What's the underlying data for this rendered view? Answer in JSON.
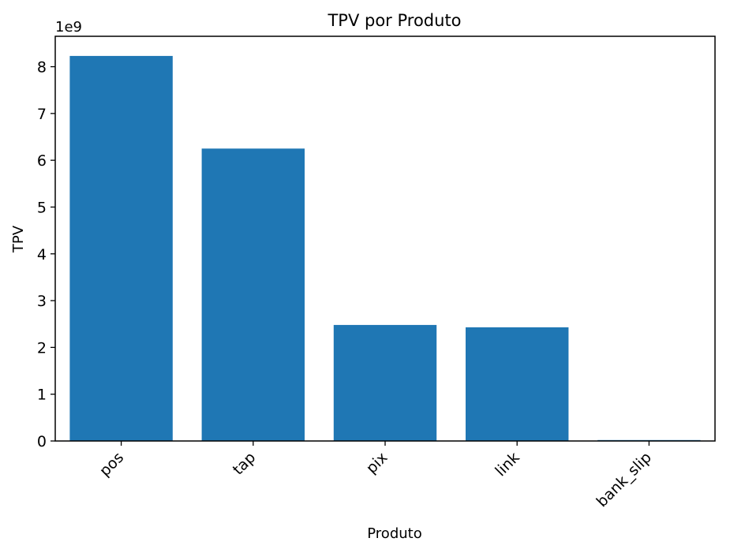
{
  "chart_data": {
    "type": "bar",
    "title": "TPV por Produto",
    "xlabel": "Produto",
    "ylabel": "TPV",
    "y_offset_label": "1e9",
    "y_scale": 1000000000,
    "categories": [
      "pos",
      "tap",
      "pix",
      "link",
      "bank_slip"
    ],
    "values": [
      8230000000,
      6250000000,
      2480000000,
      2430000000,
      20000000
    ],
    "ylim": [
      0,
      8.65
    ],
    "yticks": [
      0,
      1,
      2,
      3,
      4,
      5,
      6,
      7,
      8
    ],
    "ytick_labels": [
      "0",
      "1",
      "2",
      "3",
      "4",
      "5",
      "6",
      "7",
      "8"
    ],
    "bar_color": "#1f77b4",
    "grid": false
  }
}
